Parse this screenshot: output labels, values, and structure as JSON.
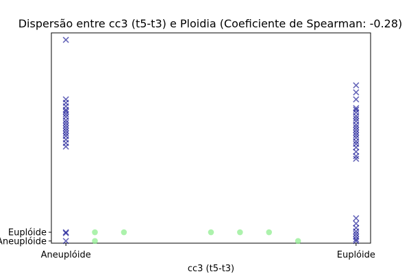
{
  "chart_data": {
    "type": "scatter",
    "title": "Dispersão entre cc3 (t5-t3) e Ploidia (Coeficiente de Spearman: -0.28)",
    "xlabel": "cc3 (t5-t3)",
    "ylabel": "",
    "x_ticks": [
      {
        "value": 0,
        "label": "Aneuplóide"
      },
      {
        "value": 10,
        "label": "Euplóide"
      }
    ],
    "y_ticks": [
      {
        "value": 0,
        "label": "Aneuplóide"
      },
      {
        "value": 1,
        "label": "Euplóide"
      }
    ],
    "xlim": [
      -0.5,
      10.5
    ],
    "ylim": [
      -0.25,
      23.8
    ],
    "grid": false,
    "legend": "none",
    "series": [
      {
        "marker": "x",
        "color": "#00008b",
        "points": [
          [
            0,
            23
          ],
          [
            0,
            16.2
          ],
          [
            0,
            15.8
          ],
          [
            0,
            15.4
          ],
          [
            0,
            15.0
          ],
          [
            0,
            14.8
          ],
          [
            0,
            14.5
          ],
          [
            0,
            14.2
          ],
          [
            0,
            13.8
          ],
          [
            0,
            13.5
          ],
          [
            0,
            13.2
          ],
          [
            0,
            12.9
          ],
          [
            0,
            12.6
          ],
          [
            0,
            12.3
          ],
          [
            0,
            12.0
          ],
          [
            0,
            11.6
          ],
          [
            0,
            11.2
          ],
          [
            0,
            10.8
          ],
          [
            0,
            1.0
          ],
          [
            0,
            0.9
          ],
          [
            0,
            0.0
          ],
          [
            10,
            17.8
          ],
          [
            10,
            17.0
          ],
          [
            10,
            16.2
          ],
          [
            10,
            15.2
          ],
          [
            10,
            15.0
          ],
          [
            10,
            14.7
          ],
          [
            10,
            14.3
          ],
          [
            10,
            14.0
          ],
          [
            10,
            13.7
          ],
          [
            10,
            13.3
          ],
          [
            10,
            13.0
          ],
          [
            10,
            12.7
          ],
          [
            10,
            12.4
          ],
          [
            10,
            12.1
          ],
          [
            10,
            11.8
          ],
          [
            10,
            11.4
          ],
          [
            10,
            11.1
          ],
          [
            10,
            10.7
          ],
          [
            10,
            10.2
          ],
          [
            10,
            9.7
          ],
          [
            10,
            9.4
          ],
          [
            10,
            2.6
          ],
          [
            10,
            2.0
          ],
          [
            10,
            1.5
          ],
          [
            10,
            1.1
          ],
          [
            10,
            0.8
          ],
          [
            10,
            0.5
          ],
          [
            10,
            0.2
          ],
          [
            10,
            0.0
          ]
        ]
      },
      {
        "marker": "o",
        "color": "#90ee90",
        "points": [
          [
            1,
            1
          ],
          [
            1,
            0
          ],
          [
            2,
            1
          ],
          [
            5,
            1
          ],
          [
            6,
            1
          ],
          [
            7,
            1
          ],
          [
            8,
            0
          ]
        ]
      }
    ]
  }
}
